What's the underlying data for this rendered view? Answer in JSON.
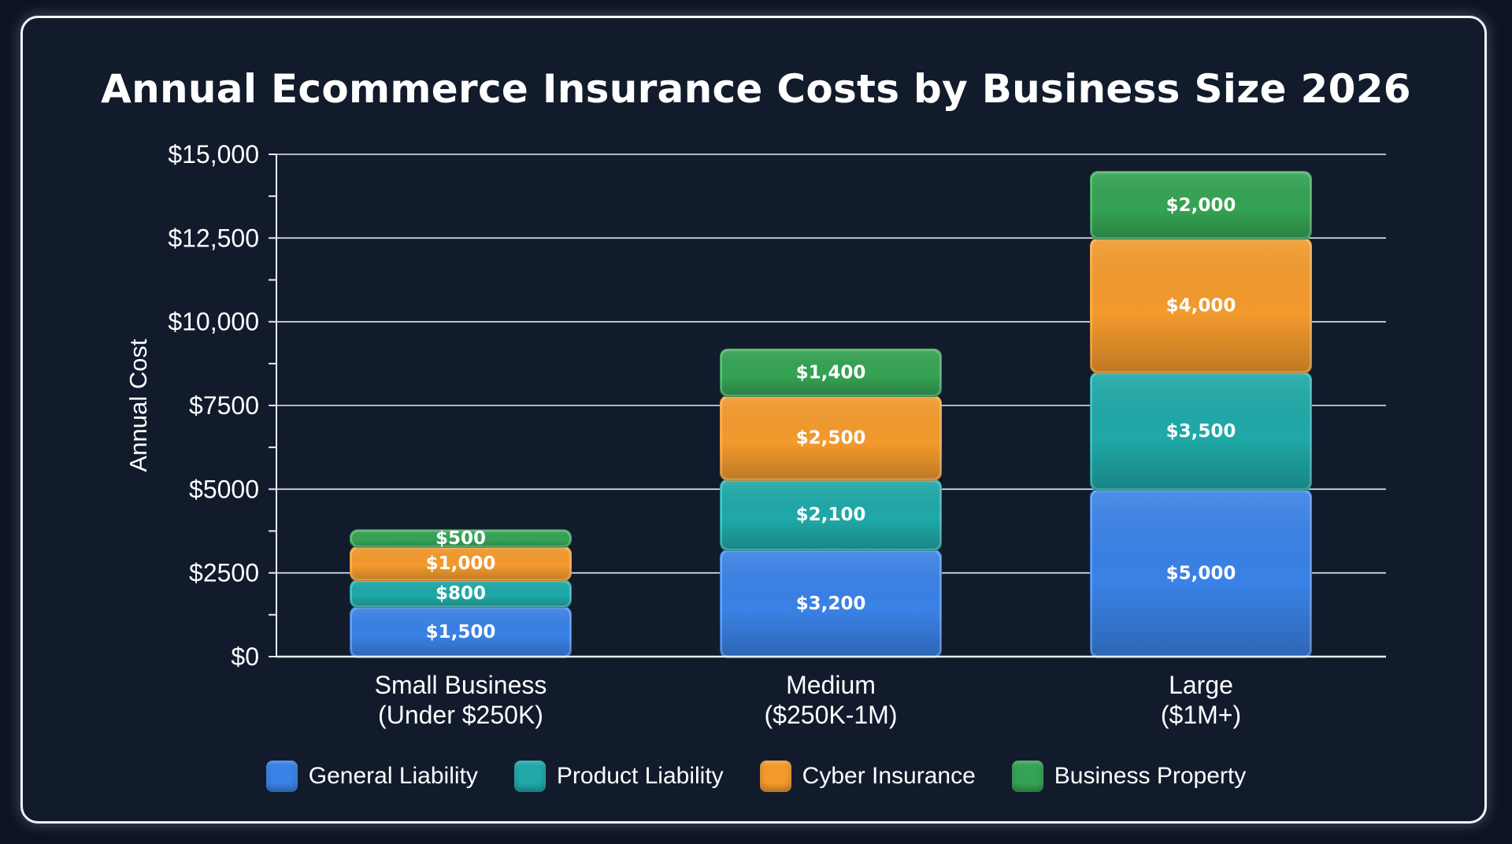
{
  "chart_data": {
    "type": "bar",
    "stacked": true,
    "title": "Annual Ecommerce Insurance Costs by Business Size 2026",
    "xlabel": "",
    "ylabel": "Annual Cost",
    "ylim": [
      0,
      15000
    ],
    "yticks": [
      {
        "value": 0,
        "label": "$0"
      },
      {
        "value": 2500,
        "label": "$2500"
      },
      {
        "value": 5000,
        "label": "$5000"
      },
      {
        "value": 7500,
        "label": "$7500"
      },
      {
        "value": 10000,
        "label": "$10,000"
      },
      {
        "value": 12500,
        "label": "$12,500"
      },
      {
        "value": 15000,
        "label": "$15,000"
      }
    ],
    "grid": true,
    "legend_position": "bottom",
    "categories": [
      [
        "Small Business",
        "(Under $250K)"
      ],
      [
        "Medium",
        "($250K-1M)"
      ],
      [
        "Large",
        "($1M+)"
      ]
    ],
    "series": [
      {
        "name": "General Liability",
        "color": "#3a82e6",
        "values": [
          1500,
          3200,
          5000
        ],
        "labels": [
          "$1,500",
          "$3,200",
          "$5,000"
        ]
      },
      {
        "name": "Product Liability",
        "color": "#1fa9a8",
        "values": [
          800,
          2100,
          3500
        ],
        "labels": [
          "$800",
          "$2,100",
          "$3,500"
        ]
      },
      {
        "name": "Cyber Insurance",
        "color": "#f39a2d",
        "values": [
          1000,
          2500,
          4000
        ],
        "labels": [
          "$1,000",
          "$2,500",
          "$4,000"
        ]
      },
      {
        "name": "Business Property",
        "color": "#35a354",
        "values": [
          500,
          1400,
          2000
        ],
        "labels": [
          "$500",
          "$1,400",
          "$2,000"
        ]
      }
    ]
  }
}
